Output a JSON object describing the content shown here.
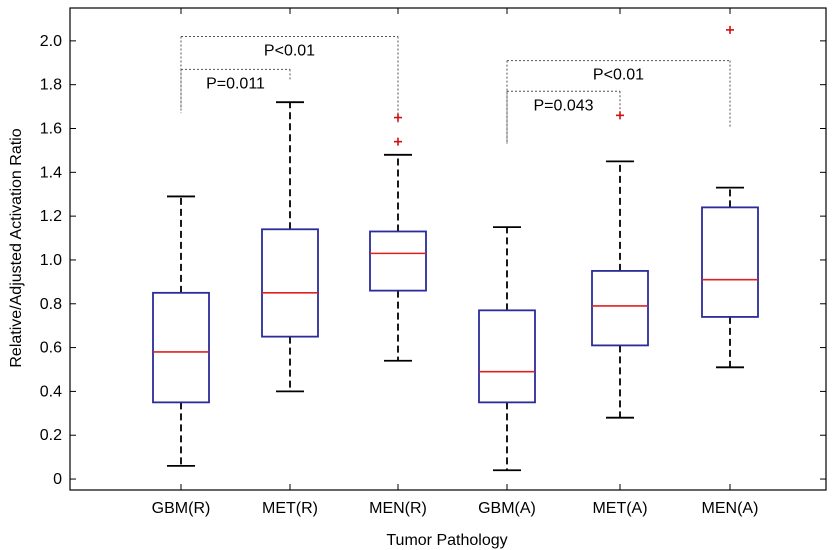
{
  "chart_data": {
    "type": "box",
    "xlabel": "Tumor Pathology",
    "ylabel": "Relative/Adjusted Activation Ratio",
    "ylim": [
      -0.05,
      2.15
    ],
    "yticks": [
      0,
      0.2,
      0.4,
      0.6,
      0.8,
      1.0,
      1.2,
      1.4,
      1.6,
      1.8,
      2.0
    ],
    "ytick_labels": [
      "0",
      "0.2",
      "0.4",
      "0.6",
      "0.8",
      "1.0",
      "1.2",
      "1.4",
      "1.6",
      "1.8",
      "2.0"
    ],
    "grid": false,
    "categories": [
      "GBM(R)",
      "MET(R)",
      "MEN(R)",
      "GBM(A)",
      "MET(A)",
      "MEN(A)"
    ],
    "boxes": [
      {
        "category": "GBM(R)",
        "whisker_low": 0.06,
        "q1": 0.35,
        "median": 0.58,
        "q3": 0.85,
        "whisker_high": 1.29,
        "outliers": []
      },
      {
        "category": "MET(R)",
        "whisker_low": 0.4,
        "q1": 0.65,
        "median": 0.85,
        "q3": 1.14,
        "whisker_high": 1.72,
        "outliers": []
      },
      {
        "category": "MEN(R)",
        "whisker_low": 0.54,
        "q1": 0.86,
        "median": 1.03,
        "q3": 1.13,
        "whisker_high": 1.48,
        "outliers": [
          1.54,
          1.65
        ]
      },
      {
        "category": "GBM(A)",
        "whisker_low": 0.04,
        "q1": 0.35,
        "median": 0.49,
        "q3": 0.77,
        "whisker_high": 1.15,
        "outliers": []
      },
      {
        "category": "MET(A)",
        "whisker_low": 0.28,
        "q1": 0.61,
        "median": 0.79,
        "q3": 0.95,
        "whisker_high": 1.45,
        "outliers": [
          1.66
        ]
      },
      {
        "category": "MEN(A)",
        "whisker_low": 0.51,
        "q1": 0.74,
        "median": 0.91,
        "q3": 1.24,
        "whisker_high": 1.33,
        "outliers": [
          2.05
        ]
      }
    ],
    "annotations": [
      {
        "text": "P<0.01",
        "from": "GBM(R)",
        "to": "MEN(R)",
        "bracket_y": 2.02,
        "left_drop_to": 1.67,
        "right_drop_to": 1.62
      },
      {
        "text": "P=0.011",
        "from": "GBM(R)",
        "to": "MET(R)",
        "bracket_y": 1.87,
        "left_drop_to": 1.69,
        "right_drop_to": 1.82
      },
      {
        "text": "P<0.01",
        "from": "GBM(A)",
        "to": "MEN(A)",
        "bracket_y": 1.91,
        "left_drop_to": 1.53,
        "right_drop_to": 1.6
      },
      {
        "text": "P=0.043",
        "from": "GBM(A)",
        "to": "MET(A)",
        "bracket_y": 1.77,
        "left_drop_to": 1.53,
        "right_drop_to": 1.67
      }
    ],
    "colors": {
      "box": "#2b2b9a",
      "median": "#e02020",
      "whisker": "#000000",
      "outlier": "#d01010",
      "bracket": "#555555"
    }
  }
}
